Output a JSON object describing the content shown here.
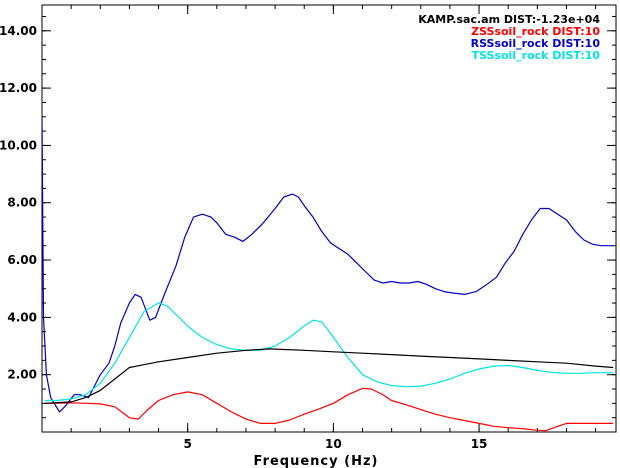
{
  "chart_data": {
    "type": "line",
    "title": "",
    "xlabel": "Frequency (Hz)",
    "ylabel": "",
    "xlim": [
      0.0,
      19.7
    ],
    "ylim": [
      0.0,
      14.9
    ],
    "grid": false,
    "legend_position": "top-right",
    "legend_header": "KAMP.sac.am DIST:-1.23e+04",
    "x_ticks": [
      {
        "value": 5,
        "label": "5"
      },
      {
        "value": 10,
        "label": "10"
      },
      {
        "value": 15,
        "label": "15"
      }
    ],
    "y_ticks": [
      {
        "value": 2,
        "label": "2.00"
      },
      {
        "value": 4,
        "label": "4.00"
      },
      {
        "value": 6,
        "label": "6.00"
      },
      {
        "value": 8,
        "label": "8.00"
      },
      {
        "value": 10,
        "label": "10.00"
      },
      {
        "value": 12,
        "label": "12.00"
      },
      {
        "value": 14,
        "label": "14.00"
      }
    ],
    "series": [
      {
        "name": "ZSSsoil_rock DIST:10",
        "color": "#ff0000",
        "x": [
          0.1,
          0.5,
          1.0,
          1.5,
          2.0,
          2.5,
          3.0,
          3.3,
          3.6,
          4.0,
          4.5,
          5.0,
          5.5,
          6.0,
          6.5,
          7.0,
          7.5,
          8.0,
          8.5,
          9.0,
          9.5,
          10.0,
          10.5,
          11.0,
          11.3,
          11.7,
          12.0,
          12.5,
          13.0,
          13.5,
          14.0,
          14.5,
          15.0,
          15.5,
          16.0,
          16.5,
          17.0,
          17.3,
          17.7,
          18.0,
          18.5,
          19.0,
          19.6
        ],
        "y": [
          1.0,
          1.0,
          1.02,
          1.0,
          0.98,
          0.88,
          0.5,
          0.45,
          0.75,
          1.1,
          1.3,
          1.4,
          1.3,
          1.0,
          0.7,
          0.45,
          0.3,
          0.3,
          0.42,
          0.62,
          0.8,
          1.0,
          1.3,
          1.52,
          1.5,
          1.3,
          1.1,
          0.95,
          0.78,
          0.62,
          0.5,
          0.4,
          0.3,
          0.2,
          0.15,
          0.12,
          0.06,
          0.05,
          0.2,
          0.3,
          0.3,
          0.3,
          0.3
        ]
      },
      {
        "name": "RSSsoil_rock DIST:10",
        "color": "#0000c8",
        "x": [
          0.0,
          0.05,
          0.15,
          0.3,
          0.6,
          0.8,
          1.1,
          1.3,
          1.6,
          1.8,
          2.0,
          2.3,
          2.5,
          2.7,
          3.0,
          3.2,
          3.4,
          3.7,
          3.9,
          4.2,
          4.6,
          4.9,
          5.2,
          5.5,
          5.8,
          6.0,
          6.3,
          6.6,
          6.9,
          7.2,
          7.6,
          8.0,
          8.3,
          8.6,
          8.8,
          9.0,
          9.3,
          9.6,
          9.9,
          10.2,
          10.5,
          10.8,
          11.1,
          11.4,
          11.7,
          12.0,
          12.3,
          12.6,
          12.9,
          13.2,
          13.5,
          13.8,
          14.1,
          14.5,
          14.9,
          15.2,
          15.6,
          15.9,
          16.2,
          16.5,
          16.8,
          17.1,
          17.4,
          17.7,
          18.0,
          18.3,
          18.6,
          18.9,
          19.2,
          19.5,
          19.6
        ],
        "y": [
          11.0,
          4.0,
          2.0,
          1.2,
          0.7,
          0.9,
          1.3,
          1.3,
          1.2,
          1.6,
          2.0,
          2.4,
          3.0,
          3.8,
          4.5,
          4.8,
          4.7,
          3.9,
          4.0,
          4.8,
          5.8,
          6.8,
          7.5,
          7.6,
          7.5,
          7.3,
          6.9,
          6.8,
          6.65,
          6.9,
          7.3,
          7.8,
          8.2,
          8.3,
          8.2,
          7.9,
          7.5,
          7.0,
          6.6,
          6.4,
          6.2,
          5.9,
          5.6,
          5.3,
          5.2,
          5.25,
          5.2,
          5.2,
          5.25,
          5.15,
          5.0,
          4.9,
          4.85,
          4.8,
          4.9,
          5.1,
          5.4,
          5.9,
          6.3,
          6.9,
          7.4,
          7.8,
          7.8,
          7.6,
          7.4,
          7.0,
          6.7,
          6.55,
          6.5,
          6.5,
          6.5
        ]
      },
      {
        "name": "TSSsoil_rock DIST:10",
        "color": "#00e4e4",
        "x": [
          0.1,
          0.5,
          1.0,
          1.5,
          2.0,
          2.5,
          3.0,
          3.5,
          4.0,
          4.3,
          4.6,
          5.0,
          5.5,
          6.0,
          6.5,
          7.0,
          7.5,
          8.0,
          8.5,
          9.0,
          9.3,
          9.6,
          10.0,
          10.5,
          11.0,
          11.5,
          12.0,
          12.5,
          13.0,
          13.5,
          14.0,
          14.5,
          15.0,
          15.5,
          16.0,
          16.5,
          17.0,
          17.5,
          18.0,
          18.5,
          19.0,
          19.6
        ],
        "y": [
          1.1,
          1.1,
          1.15,
          1.3,
          1.7,
          2.4,
          3.3,
          4.2,
          4.5,
          4.4,
          4.1,
          3.7,
          3.3,
          3.05,
          2.9,
          2.85,
          2.85,
          3.0,
          3.3,
          3.7,
          3.9,
          3.85,
          3.3,
          2.6,
          2.0,
          1.75,
          1.62,
          1.58,
          1.6,
          1.7,
          1.85,
          2.05,
          2.2,
          2.3,
          2.32,
          2.25,
          2.15,
          2.08,
          2.05,
          2.05,
          2.07,
          2.07
        ]
      },
      {
        "name": "",
        "color": "#000000",
        "x": [
          0.1,
          1.0,
          1.5,
          2.0,
          2.5,
          3.0,
          3.5,
          4.0,
          5.0,
          6.0,
          7.0,
          7.8,
          9.0,
          10.0,
          11.0,
          12.0,
          13.0,
          14.0,
          15.0,
          16.0,
          17.0,
          18.0,
          19.0,
          19.6
        ],
        "y": [
          1.0,
          1.05,
          1.2,
          1.45,
          1.85,
          2.25,
          2.35,
          2.45,
          2.6,
          2.75,
          2.85,
          2.9,
          2.85,
          2.8,
          2.75,
          2.7,
          2.65,
          2.6,
          2.55,
          2.5,
          2.45,
          2.4,
          2.3,
          2.25
        ]
      }
    ]
  }
}
